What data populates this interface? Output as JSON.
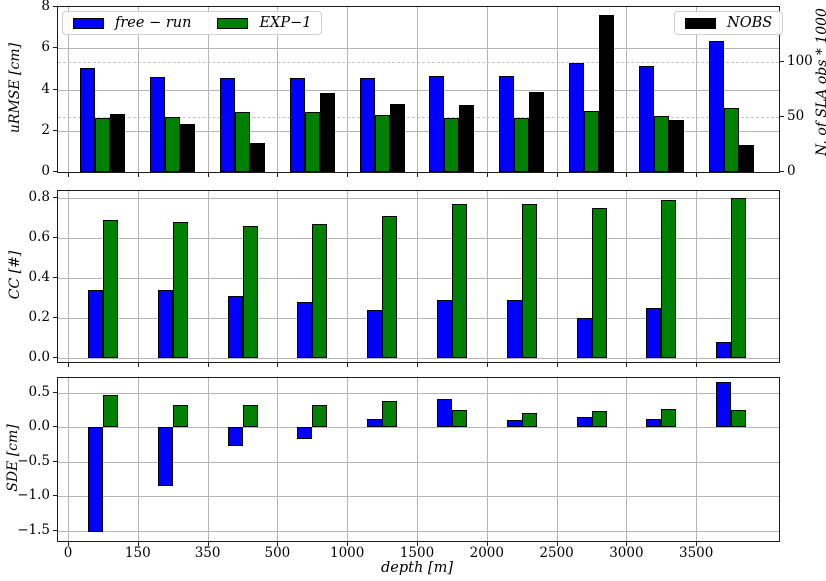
{
  "colors": {
    "free_run": "#0000ff",
    "exp1": "#008000",
    "nobs": "#000000",
    "grid": "#b5b5b5",
    "frame": "#1c1c1c"
  },
  "legend": {
    "free_run": "free − run",
    "exp1": "EXP−1",
    "nobs": "NOBS"
  },
  "xlabel": "depth [m]",
  "chart_data": [
    {
      "type": "bar",
      "ylabel": "uRMSE [cm]",
      "ylabel_right": "N. of SLA obs * 1000",
      "ylim": [
        0,
        8
      ],
      "ylim_right": [
        0,
        150.5
      ],
      "yticks": [
        0,
        2,
        4,
        6,
        8
      ],
      "ytick_labels": [
        "0",
        "2",
        "4",
        "6",
        "8"
      ],
      "yticks_right": [
        0,
        50,
        100
      ],
      "ytick_labels_right": [
        "0",
        "50",
        "100"
      ],
      "x_tick_labels": [
        "0",
        "150",
        "350",
        "500",
        "1000",
        "1500",
        "2000",
        "2500",
        "3000",
        "3500"
      ],
      "categories": [
        "0-150",
        "150-350",
        "350-500",
        "500-1000",
        "1000-1500",
        "1500-2000",
        "2000-2500",
        "2500-3000",
        "3000-3500",
        "3500-4000"
      ],
      "grid": "on",
      "legend_position": "upper-left and upper-right inside axes",
      "series": [
        {
          "key": "free_run",
          "name": "free − run",
          "axis": "left",
          "values": [
            5.05,
            4.6,
            4.55,
            4.55,
            4.55,
            4.65,
            4.65,
            5.3,
            5.15,
            6.35
          ]
        },
        {
          "key": "exp1",
          "name": "EXP−1",
          "axis": "left",
          "values": [
            2.6,
            2.65,
            2.9,
            2.9,
            2.75,
            2.6,
            2.6,
            2.95,
            2.7,
            3.1
          ]
        },
        {
          "key": "nobs",
          "name": "NOBS",
          "axis": "right",
          "values": [
            53,
            44,
            26,
            72,
            62,
            61,
            73,
            143,
            47,
            25
          ]
        }
      ]
    },
    {
      "type": "bar",
      "ylabel": "CC [#]",
      "ylim": [
        -0.02,
        0.836
      ],
      "yticks": [
        0.0,
        0.2,
        0.4,
        0.6,
        0.8
      ],
      "ytick_labels": [
        "0.0",
        "0.2",
        "0.4",
        "0.6",
        "0.8"
      ],
      "x_tick_labels": [
        "0",
        "150",
        "350",
        "500",
        "1000",
        "1500",
        "2000",
        "2500",
        "3000",
        "3500"
      ],
      "categories": [
        "0-150",
        "150-350",
        "350-500",
        "500-1000",
        "1000-1500",
        "1500-2000",
        "2000-2500",
        "2500-3000",
        "3000-3500",
        "3500-4000"
      ],
      "grid": "on",
      "series": [
        {
          "key": "free_run",
          "name": "free − run",
          "axis": "left",
          "values": [
            0.34,
            0.34,
            0.31,
            0.28,
            0.24,
            0.29,
            0.29,
            0.2,
            0.25,
            0.08
          ]
        },
        {
          "key": "exp1",
          "name": "EXP−1",
          "axis": "left",
          "values": [
            0.69,
            0.68,
            0.66,
            0.67,
            0.71,
            0.77,
            0.77,
            0.75,
            0.79,
            0.8
          ]
        }
      ]
    },
    {
      "type": "bar",
      "ylabel": "SDE [cm]",
      "xlabel": "depth [m]",
      "ylim": [
        -1.65,
        0.71
      ],
      "yticks": [
        0.5,
        0.0,
        -0.5,
        -1.0,
        -1.5
      ],
      "ytick_labels": [
        "0.5",
        "0.0",
        "−0.5",
        "−1.0",
        "−1.5"
      ],
      "x_tick_labels": [
        "0",
        "150",
        "350",
        "500",
        "1000",
        "1500",
        "2000",
        "2500",
        "3000",
        "3500"
      ],
      "categories": [
        "0-150",
        "150-350",
        "350-500",
        "500-1000",
        "1000-1500",
        "1500-2000",
        "2000-2500",
        "2500-3000",
        "3000-3500",
        "3500-4000"
      ],
      "grid": "on",
      "series": [
        {
          "key": "free_run",
          "name": "free − run",
          "axis": "left",
          "values": [
            -1.52,
            -0.85,
            -0.28,
            -0.17,
            0.11,
            0.4,
            0.1,
            0.15,
            0.12,
            0.65
          ]
        },
        {
          "key": "exp1",
          "name": "EXP−1",
          "axis": "left",
          "values": [
            0.46,
            0.32,
            0.32,
            0.32,
            0.37,
            0.25,
            0.21,
            0.23,
            0.26,
            0.25
          ]
        }
      ]
    }
  ]
}
